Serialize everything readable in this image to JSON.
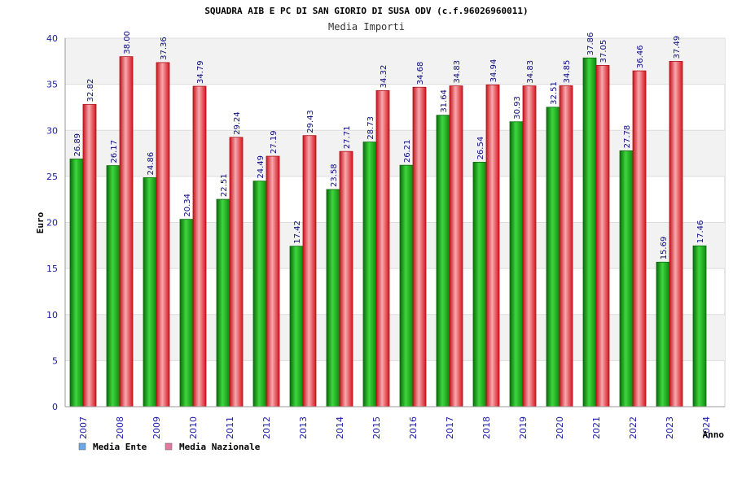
{
  "chart_data": {
    "type": "bar",
    "title": "SQUADRA AIB E PC DI SAN GIORIO DI SUSA ODV (c.f.96026960011)",
    "subtitle": "Media Importi",
    "xlabel": "Anno",
    "ylabel": "Euro",
    "ylim": [
      0,
      40
    ],
    "yticks": [
      0,
      5,
      10,
      15,
      20,
      25,
      30,
      35,
      40
    ],
    "grid": "horizontal bands",
    "legend_position": "bottom-left",
    "categories": [
      "2007",
      "2008",
      "2009",
      "2010",
      "2011",
      "2012",
      "2013",
      "2014",
      "2015",
      "2016",
      "2017",
      "2018",
      "2019",
      "2020",
      "2021",
      "2022",
      "2023",
      "2024"
    ],
    "series": [
      {
        "name": "Media Ente",
        "color": "#1fae1f",
        "legend_color": "#6aa8e8",
        "values": [
          26.89,
          26.17,
          24.86,
          20.34,
          22.51,
          24.49,
          17.42,
          23.58,
          28.73,
          26.21,
          31.64,
          26.54,
          30.93,
          32.51,
          37.86,
          27.78,
          15.69,
          17.46
        ],
        "labels": [
          "26.89",
          "26.17",
          "24.86",
          "20.34",
          "22.51",
          "24.49",
          "17.42",
          "23.58",
          "28.73",
          "26.21",
          "31.64",
          "26.54",
          "30.93",
          "32.51",
          "37.86",
          "27.78",
          "15.69",
          "17.46"
        ]
      },
      {
        "name": "Media Nazionale",
        "color": "#e8232b",
        "legend_color": "#e07ba0",
        "values": [
          32.82,
          38.0,
          37.36,
          34.79,
          29.24,
          27.19,
          29.43,
          27.71,
          34.32,
          34.68,
          34.83,
          34.94,
          34.83,
          34.85,
          37.05,
          36.46,
          37.49,
          null
        ],
        "labels": [
          "32.82",
          "38.00",
          "37.36",
          "34.79",
          "29.24",
          "27.19",
          "29.43",
          "27.71",
          "34.32",
          "34.68",
          "34.83",
          "34.94",
          "34.83",
          "34.85",
          "37.05",
          "36.46",
          "37.49",
          ""
        ]
      }
    ],
    "colors": {
      "band": "#f2f2f2",
      "tick_text": "#1a1aa6",
      "data_label": "#0a0a80"
    }
  }
}
